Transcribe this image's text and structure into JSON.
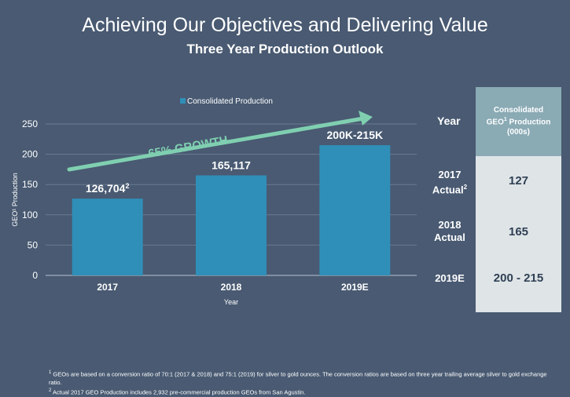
{
  "title": "Achieving Our Objectives and Delivering Value",
  "subtitle": "Three Year Production Outlook",
  "chart_data": {
    "type": "bar",
    "categories": [
      "2017",
      "2018",
      "2019E"
    ],
    "values": [
      126.704,
      165.117,
      215
    ],
    "data_labels": [
      "126,704",
      "165,117",
      "200K-215K"
    ],
    "data_label_sup": [
      "2",
      "",
      ""
    ],
    "ylim": [
      0,
      250
    ],
    "yticks": [
      0,
      50,
      100,
      150,
      200,
      250
    ],
    "xlabel": "Year",
    "ylabel": "GEO¹ Production",
    "legend": "Consolidated Production",
    "legend_position": "top",
    "bar_color": "#2f8fb8",
    "annotation": "65% GROWTH",
    "annotation_color": "#7fcfb0"
  },
  "table": {
    "year_header": "Year",
    "col_header_line1": "Consolidated",
    "col_header_line2": "GEO",
    "col_header_sup": "1",
    "col_header_line2b": " Production",
    "col_header_line3": "(000s)",
    "rows": [
      {
        "year": "2017",
        "note": "Actual",
        "note_sup": "2",
        "value": "127"
      },
      {
        "year": "2018",
        "note": "Actual",
        "note_sup": "",
        "value": "165"
      },
      {
        "year": "2019E",
        "note": "",
        "note_sup": "",
        "value": "200 - 215"
      }
    ]
  },
  "footnotes": {
    "note1_mark": "1",
    "note1": " GEOs are based on a conversion ratio of 70:1 (2017 & 2018) and 75:1 (2019) for silver to gold ounces. The conversion ratios are based on three year trailing average silver to gold exchange ratio.",
    "note2_mark": "2",
    "note2": " Actual 2017 GEO Production includes 2,932 pre-commercial production GEOs from San Agustin."
  }
}
